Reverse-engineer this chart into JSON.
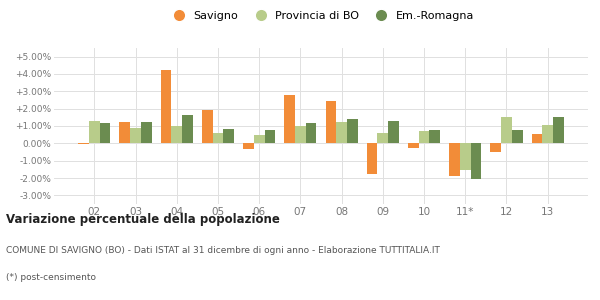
{
  "years": [
    "02",
    "03",
    "04",
    "05",
    "06",
    "07",
    "08",
    "09",
    "10",
    "11*",
    "12",
    "13"
  ],
  "savigno": [
    -0.05,
    1.25,
    4.25,
    1.9,
    -0.3,
    2.8,
    2.45,
    -1.75,
    -0.25,
    -1.9,
    -0.5,
    0.55
  ],
  "provincia_bo": [
    1.3,
    0.9,
    1.0,
    0.6,
    0.5,
    1.0,
    1.25,
    0.6,
    0.7,
    -1.55,
    1.5,
    1.05
  ],
  "em_romagna": [
    1.15,
    1.25,
    1.65,
    0.8,
    0.75,
    1.2,
    1.4,
    1.3,
    0.75,
    -2.05,
    0.75,
    1.5
  ],
  "color_savigno": "#f28c38",
  "color_provincia": "#b8cc8a",
  "color_emromagna": "#6b8c50",
  "ylim_min": -3.5,
  "ylim_max": 5.5,
  "yticks": [
    -3.0,
    -2.0,
    -1.0,
    0.0,
    1.0,
    2.0,
    3.0,
    4.0,
    5.0
  ],
  "ytick_labels": [
    "-3.00%",
    "-2.00%",
    "-1.00%",
    "0.00%",
    "+1.00%",
    "+2.00%",
    "+3.00%",
    "+4.00%",
    "+5.00%"
  ],
  "legend_labels": [
    "Savigno",
    "Provincia di BO",
    "Em.-Romagna"
  ],
  "title": "Variazione percentuale della popolazione",
  "subtitle": "COMUNE DI SAVIGNO (BO) - Dati ISTAT al 31 dicembre di ogni anno - Elaborazione TUTTITALIA.IT",
  "footnote": "(*) post-censimento",
  "bg_color": "#ffffff",
  "grid_color": "#e0e0e0"
}
